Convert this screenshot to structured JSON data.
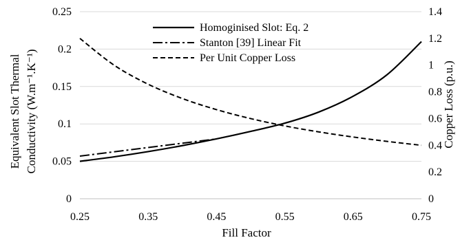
{
  "chart_data": {
    "type": "line",
    "xlabel": "Fill Factor",
    "ylabel_left_line1": "Equivalent Slot Thermal",
    "ylabel_left_line2": "Conductivity (W.m⁻¹.K⁻¹)",
    "ylabel_right": "Copper Loss (p.u.)",
    "xlim": [
      0.25,
      0.75
    ],
    "ylim_left": [
      0,
      0.25
    ],
    "ylim_right": [
      0,
      1.4
    ],
    "x_ticks": [
      "0.25",
      "0.35",
      "0.45",
      "0.55",
      "0.65",
      "0.75"
    ],
    "y_left_ticks": [
      "0",
      "0.05",
      "0.1",
      "0.15",
      "0.2",
      "0.25"
    ],
    "y_right_ticks": [
      "0",
      "0.2",
      "0.4",
      "0.6",
      "0.8",
      "1",
      "1.2",
      "1.4"
    ],
    "grid": "horizontal",
    "legend_position": "top-center",
    "series": [
      {
        "name": "Homoginised Slot: Eq. 2",
        "axis": "left",
        "style": "solid",
        "x": [
          0.25,
          0.3,
          0.35,
          0.4,
          0.45,
          0.5,
          0.55,
          0.6,
          0.65,
          0.7,
          0.75
        ],
        "y": [
          0.05,
          0.056,
          0.063,
          0.071,
          0.08,
          0.09,
          0.101,
          0.116,
          0.137,
          0.166,
          0.21
        ]
      },
      {
        "name": "Stanton [39] Linear Fit",
        "axis": "left",
        "style": "dashdot",
        "x": [
          0.25,
          0.45
        ],
        "y": [
          0.057,
          0.08
        ]
      },
      {
        "name": "Per Unit Copper Loss",
        "axis": "right",
        "style": "dashed",
        "x": [
          0.25,
          0.3,
          0.35,
          0.4,
          0.45,
          0.5,
          0.55,
          0.6,
          0.65,
          0.7,
          0.75
        ],
        "y": [
          1.2,
          1.0,
          0.857,
          0.75,
          0.667,
          0.6,
          0.545,
          0.5,
          0.462,
          0.429,
          0.4
        ]
      }
    ]
  }
}
